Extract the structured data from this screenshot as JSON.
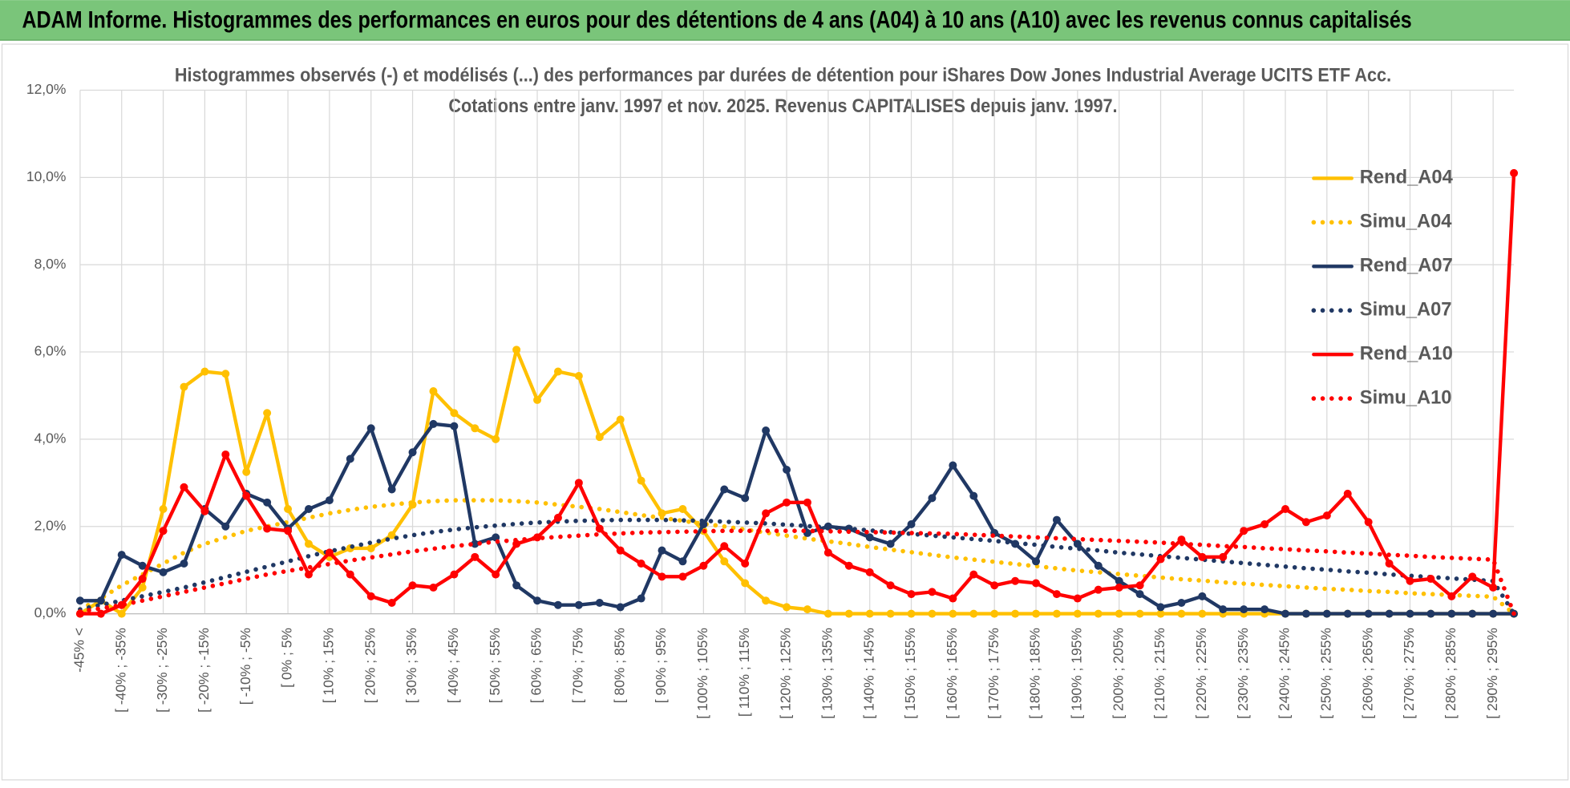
{
  "header": {
    "title": "ADAM Informe. Histogrammes des performances en euros pour des détentions de 4 ans (A04) à 10 ans (A10) avec les revenus connus capitalisés"
  },
  "chart_data": {
    "type": "line",
    "title": "Histogrammes observés (-) et modélisés (...) des performances par durées de détention pour iShares Dow Jones Industrial Average UCITS ETF Acc.",
    "subtitle": "Cotations entre janv. 1997 et nov. 2025. Revenus CAPITALISES depuis janv. 1997.",
    "categories": [
      "-45% <",
      null,
      "[ -40% ; -35%",
      null,
      "[ -30% ; -25%",
      null,
      "[ -20% ; -15%",
      null,
      "[ -10% ; -5%",
      null,
      "[ 0% ; 5%",
      null,
      "[ 10% ; 15%",
      null,
      "[ 20% ; 25%",
      null,
      "[ 30% ; 35%",
      null,
      "[ 40% ; 45%",
      null,
      "[ 50% ; 55%",
      null,
      "[ 60% ; 65%",
      null,
      "[ 70% ; 75%",
      null,
      "[ 80% ; 85%",
      null,
      "[ 90% ; 95%",
      null,
      "[ 100% ; 105%",
      null,
      "[ 110% ; 115%",
      null,
      "[ 120% ; 125%",
      null,
      "[ 130% ; 135%",
      null,
      "[ 140% ; 145%",
      null,
      "[ 150% ; 155%",
      null,
      "[ 160% ; 165%",
      null,
      "[ 170% ; 175%",
      null,
      "[ 180% ; 185%",
      null,
      "[ 190% ; 195%",
      null,
      "[ 200% ; 205%",
      null,
      "[ 210% ; 215%",
      null,
      "[ 220% ; 225%",
      null,
      "[ 230% ; 235%",
      null,
      "[ 240% ; 245%",
      null,
      "[ 250% ; 255%",
      null,
      "[ 260% ; 265%",
      null,
      "[ 270% ; 275%",
      null,
      "[ 280% ; 285%",
      null,
      "[ 290% ; 295%",
      null
    ],
    "ylim": [
      0,
      12
    ],
    "yticks": [
      {
        "value": 0,
        "label": "0,0%"
      },
      {
        "value": 2,
        "label": "2,0%"
      },
      {
        "value": 4,
        "label": "4,0%"
      },
      {
        "value": 6,
        "label": "6,0%"
      },
      {
        "value": 8,
        "label": "8,0%"
      },
      {
        "value": 10,
        "label": "10,0%"
      },
      {
        "value": 12,
        "label": "12,0%"
      }
    ],
    "grid": true,
    "legend": "right",
    "series": [
      {
        "name": "Rend_A04",
        "color": "#FFC000",
        "style": "solid",
        "markers": true,
        "values": [
          0,
          0.3,
          0,
          0.6,
          2.4,
          5.2,
          5.55,
          5.5,
          3.25,
          4.6,
          2.4,
          1.6,
          1.3,
          1.5,
          1.5,
          1.8,
          2.5,
          5.1,
          4.6,
          4.25,
          4.0,
          6.05,
          4.9,
          5.55,
          5.45,
          4.05,
          4.45,
          3.05,
          2.3,
          2.4,
          1.9,
          1.2,
          0.7,
          0.3,
          0.15,
          0.1,
          0,
          0,
          0,
          0,
          0,
          0,
          0,
          0,
          0,
          0,
          0,
          0,
          0,
          0,
          0,
          0,
          0,
          0,
          0,
          0,
          0,
          0,
          0,
          0,
          0,
          0,
          0,
          0,
          0,
          0,
          0,
          0,
          0,
          0
        ]
      },
      {
        "name": "Simu_A04",
        "color": "#FFC000",
        "style": "dotted",
        "markers": false,
        "values": [
          0.1,
          0.35,
          0.65,
          0.9,
          1.15,
          1.4,
          1.6,
          1.75,
          1.9,
          2.0,
          2.1,
          2.2,
          2.3,
          2.38,
          2.45,
          2.5,
          2.55,
          2.58,
          2.6,
          2.6,
          2.6,
          2.58,
          2.55,
          2.5,
          2.45,
          2.4,
          2.33,
          2.26,
          2.2,
          2.13,
          2.06,
          2.0,
          1.93,
          1.86,
          1.79,
          1.72,
          1.66,
          1.6,
          1.53,
          1.47,
          1.41,
          1.35,
          1.29,
          1.24,
          1.19,
          1.14,
          1.09,
          1.04,
          0.99,
          0.95,
          0.91,
          0.87,
          0.83,
          0.79,
          0.76,
          0.72,
          0.69,
          0.66,
          0.63,
          0.6,
          0.57,
          0.55,
          0.52,
          0.5,
          0.47,
          0.45,
          0.43,
          0.41,
          0.39,
          0
        ]
      },
      {
        "name": "Rend_A07",
        "color": "#203864",
        "style": "solid",
        "markers": true,
        "values": [
          0.3,
          0.3,
          1.35,
          1.1,
          0.95,
          1.15,
          2.4,
          2.0,
          2.75,
          2.55,
          1.95,
          2.4,
          2.6,
          3.55,
          4.25,
          2.85,
          3.7,
          4.35,
          4.3,
          1.6,
          1.75,
          0.65,
          0.3,
          0.2,
          0.2,
          0.25,
          0.15,
          0.35,
          1.45,
          1.2,
          2.05,
          2.85,
          2.65,
          4.2,
          3.3,
          1.85,
          2.0,
          1.95,
          1.75,
          1.6,
          2.05,
          2.65,
          3.4,
          2.7,
          1.85,
          1.6,
          1.2,
          2.15,
          1.6,
          1.1,
          0.75,
          0.45,
          0.15,
          0.25,
          0.4,
          0.1,
          0.1,
          0.1,
          0,
          0,
          0,
          0,
          0,
          0,
          0,
          0,
          0,
          0,
          0,
          0
        ]
      },
      {
        "name": "Simu_A07",
        "color": "#203864",
        "style": "dotted",
        "markers": false,
        "values": [
          0.1,
          0.2,
          0.3,
          0.4,
          0.5,
          0.6,
          0.72,
          0.84,
          0.96,
          1.08,
          1.2,
          1.32,
          1.43,
          1.53,
          1.63,
          1.72,
          1.8,
          1.87,
          1.93,
          1.98,
          2.02,
          2.06,
          2.09,
          2.11,
          2.13,
          2.14,
          2.15,
          2.15,
          2.15,
          2.14,
          2.13,
          2.11,
          2.09,
          2.07,
          2.04,
          2.01,
          1.98,
          1.95,
          1.91,
          1.87,
          1.83,
          1.79,
          1.75,
          1.71,
          1.67,
          1.62,
          1.58,
          1.53,
          1.49,
          1.45,
          1.4,
          1.36,
          1.32,
          1.28,
          1.24,
          1.2,
          1.16,
          1.12,
          1.08,
          1.04,
          1.01,
          0.97,
          0.94,
          0.9,
          0.87,
          0.84,
          0.81,
          0.78,
          0.75,
          0
        ]
      },
      {
        "name": "Rend_A10",
        "color": "#FF0000",
        "style": "solid",
        "markers": true,
        "values": [
          0,
          0,
          0.2,
          0.8,
          1.9,
          2.9,
          2.35,
          3.65,
          2.7,
          1.95,
          1.9,
          0.9,
          1.4,
          0.9,
          0.4,
          0.25,
          0.65,
          0.6,
          0.9,
          1.3,
          0.9,
          1.6,
          1.75,
          2.2,
          3.0,
          1.95,
          1.45,
          1.15,
          0.85,
          0.85,
          1.1,
          1.55,
          1.15,
          2.3,
          2.55,
          2.55,
          1.4,
          1.1,
          0.95,
          0.65,
          0.45,
          0.5,
          0.35,
          0.9,
          0.65,
          0.75,
          0.7,
          0.45,
          0.35,
          0.55,
          0.6,
          0.65,
          1.25,
          1.7,
          1.3,
          1.3,
          1.9,
          2.05,
          2.4,
          2.1,
          2.25,
          2.75,
          2.1,
          1.15,
          0.75,
          0.8,
          0.4,
          0.85,
          0.6,
          10.1
        ]
      },
      {
        "name": "Simu_A10",
        "color": "#FF0000",
        "style": "dotted",
        "markers": false,
        "values": [
          0.05,
          0.12,
          0.2,
          0.3,
          0.4,
          0.5,
          0.6,
          0.7,
          0.8,
          0.9,
          0.98,
          1.06,
          1.14,
          1.22,
          1.29,
          1.36,
          1.43,
          1.49,
          1.55,
          1.6,
          1.65,
          1.69,
          1.73,
          1.76,
          1.79,
          1.82,
          1.84,
          1.86,
          1.87,
          1.88,
          1.89,
          1.9,
          1.9,
          1.9,
          1.9,
          1.9,
          1.89,
          1.88,
          1.87,
          1.86,
          1.85,
          1.84,
          1.83,
          1.81,
          1.79,
          1.77,
          1.75,
          1.73,
          1.71,
          1.69,
          1.67,
          1.65,
          1.63,
          1.6,
          1.58,
          1.55,
          1.53,
          1.5,
          1.48,
          1.45,
          1.43,
          1.4,
          1.38,
          1.35,
          1.33,
          1.3,
          1.28,
          1.26,
          1.24,
          0
        ]
      }
    ]
  }
}
